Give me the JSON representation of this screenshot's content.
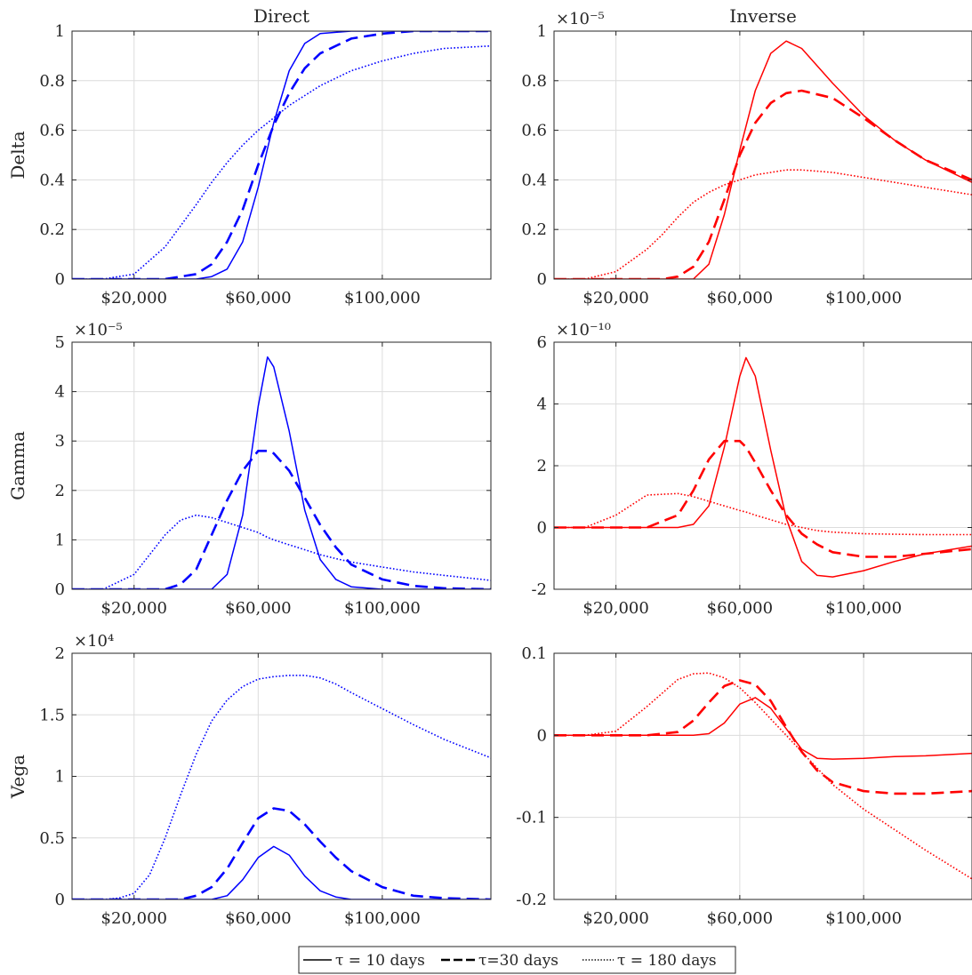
{
  "figure": {
    "column_titles": [
      "Direct",
      "Inverse"
    ],
    "row_labels": [
      "Delta",
      "Gamma",
      "Vega"
    ],
    "legend": [
      {
        "label": "τ = 10 days",
        "style": "solid"
      },
      {
        "label": "τ=30 days",
        "style": "dashed"
      },
      {
        "label": "τ = 180 days",
        "style": "dotted"
      }
    ],
    "colors": {
      "direct": "#0000ff",
      "inverse": "#ff0000",
      "grid": "#dcdcdc",
      "axis": "#262626"
    }
  },
  "chart_data": [
    {
      "type": "line",
      "panel": "delta-direct",
      "title": "Direct",
      "ylabel": "Delta",
      "xlim": [
        0,
        135000
      ],
      "ylim": [
        0,
        1
      ],
      "multiplier": "",
      "xticks": [
        20000,
        60000,
        100000
      ],
      "xtick_labels": [
        "$20,000",
        "$60,000",
        "$100,000"
      ],
      "yticks": [
        0,
        0.2,
        0.4,
        0.6,
        0.8,
        1
      ],
      "ytick_labels": [
        "0",
        "0.2",
        "0.4",
        "0.6",
        "0.8",
        "1"
      ],
      "x": [
        0,
        10000,
        20000,
        30000,
        40000,
        45000,
        50000,
        55000,
        60000,
        65000,
        70000,
        75000,
        80000,
        90000,
        100000,
        110000,
        120000,
        135000
      ],
      "series": [
        {
          "style": "solid",
          "values": [
            0,
            0,
            0,
            0,
            0,
            0.01,
            0.04,
            0.15,
            0.37,
            0.63,
            0.84,
            0.95,
            0.99,
            1,
            1,
            1,
            1,
            1
          ]
        },
        {
          "style": "dashed",
          "values": [
            0,
            0,
            0,
            0,
            0.02,
            0.06,
            0.15,
            0.28,
            0.46,
            0.62,
            0.75,
            0.85,
            0.91,
            0.97,
            0.99,
            1,
            1,
            1
          ]
        },
        {
          "style": "dotted",
          "values": [
            0,
            0,
            0.02,
            0.13,
            0.3,
            0.39,
            0.47,
            0.54,
            0.6,
            0.65,
            0.7,
            0.74,
            0.78,
            0.84,
            0.88,
            0.91,
            0.93,
            0.94
          ]
        }
      ]
    },
    {
      "type": "line",
      "panel": "delta-inverse",
      "title": "Inverse",
      "ylabel": "",
      "xlim": [
        0,
        135000
      ],
      "ylim": [
        0,
        1
      ],
      "multiplier": "×10⁻⁵",
      "xticks": [
        20000,
        60000,
        100000
      ],
      "xtick_labels": [
        "$20,000",
        "$60,000",
        "$100,000"
      ],
      "yticks": [
        0,
        0.2,
        0.4,
        0.6,
        0.8,
        1
      ],
      "ytick_labels": [
        "0",
        "0.2",
        "0.4",
        "0.6",
        "0.8",
        "1"
      ],
      "x": [
        0,
        10000,
        20000,
        30000,
        35000,
        40000,
        45000,
        50000,
        55000,
        60000,
        65000,
        70000,
        75000,
        80000,
        90000,
        100000,
        110000,
        120000,
        135000
      ],
      "series": [
        {
          "style": "solid",
          "values": [
            0,
            0,
            0,
            0,
            0,
            0,
            0,
            0.06,
            0.26,
            0.52,
            0.76,
            0.91,
            0.96,
            0.93,
            0.79,
            0.66,
            0.56,
            0.48,
            0.39
          ]
        },
        {
          "style": "dashed",
          "values": [
            0,
            0,
            0,
            0,
            0,
            0.01,
            0.05,
            0.15,
            0.32,
            0.5,
            0.63,
            0.71,
            0.75,
            0.76,
            0.73,
            0.65,
            0.56,
            0.48,
            0.4
          ]
        },
        {
          "style": "dotted",
          "values": [
            0,
            0,
            0.03,
            0.12,
            0.18,
            0.25,
            0.31,
            0.35,
            0.38,
            0.4,
            0.42,
            0.43,
            0.44,
            0.44,
            0.43,
            0.41,
            0.39,
            0.37,
            0.34
          ]
        }
      ]
    },
    {
      "type": "line",
      "panel": "gamma-direct",
      "title": "",
      "ylabel": "Gamma",
      "xlim": [
        0,
        135000
      ],
      "ylim": [
        0,
        5
      ],
      "multiplier": "×10⁻⁵",
      "xticks": [
        20000,
        60000,
        100000
      ],
      "xtick_labels": [
        "$20,000",
        "$60,000",
        "$100,000"
      ],
      "yticks": [
        0,
        1,
        2,
        3,
        4,
        5
      ],
      "ytick_labels": [
        "0",
        "1",
        "2",
        "3",
        "4",
        "5"
      ],
      "x": [
        0,
        10000,
        20000,
        30000,
        35000,
        40000,
        45000,
        50000,
        55000,
        60000,
        63000,
        65000,
        70000,
        75000,
        80000,
        85000,
        90000,
        100000,
        110000,
        120000,
        135000
      ],
      "series": [
        {
          "style": "solid",
          "values": [
            0,
            0,
            0,
            0,
            0,
            0,
            0,
            0.3,
            1.5,
            3.7,
            4.7,
            4.5,
            3.2,
            1.6,
            0.6,
            0.2,
            0.05,
            0,
            0,
            0,
            0
          ]
        },
        {
          "style": "dashed",
          "values": [
            0,
            0,
            0,
            0,
            0.1,
            0.4,
            1.1,
            1.8,
            2.4,
            2.8,
            2.8,
            2.75,
            2.4,
            1.85,
            1.3,
            0.85,
            0.5,
            0.2,
            0.07,
            0.02,
            0
          ]
        },
        {
          "style": "dotted",
          "values": [
            0,
            0,
            0.3,
            1.1,
            1.4,
            1.5,
            1.45,
            1.35,
            1.25,
            1.15,
            1.05,
            1.0,
            0.9,
            0.8,
            0.7,
            0.62,
            0.55,
            0.45,
            0.35,
            0.28,
            0.18
          ]
        }
      ]
    },
    {
      "type": "line",
      "panel": "gamma-inverse",
      "title": "",
      "ylabel": "",
      "xlim": [
        0,
        135000
      ],
      "ylim": [
        -2,
        6
      ],
      "multiplier": "×10⁻¹⁰",
      "xticks": [
        20000,
        60000,
        100000
      ],
      "xtick_labels": [
        "$20,000",
        "$60,000",
        "$100,000"
      ],
      "yticks": [
        -2,
        0,
        2,
        4,
        6
      ],
      "ytick_labels": [
        "-2",
        "0",
        "2",
        "4",
        "6"
      ],
      "x": [
        0,
        10000,
        20000,
        30000,
        40000,
        45000,
        50000,
        55000,
        60000,
        62000,
        65000,
        70000,
        75000,
        80000,
        85000,
        90000,
        100000,
        110000,
        120000,
        135000
      ],
      "series": [
        {
          "style": "solid",
          "values": [
            0,
            0,
            0,
            0,
            0,
            0.1,
            0.7,
            2.6,
            4.9,
            5.5,
            4.9,
            2.5,
            0.3,
            -1.1,
            -1.55,
            -1.6,
            -1.4,
            -1.1,
            -0.85,
            -0.6
          ]
        },
        {
          "style": "dashed",
          "values": [
            0,
            0,
            0,
            0,
            0.4,
            1.2,
            2.2,
            2.8,
            2.8,
            2.6,
            2.1,
            1.2,
            0.4,
            -0.2,
            -0.55,
            -0.8,
            -0.95,
            -0.95,
            -0.85,
            -0.7
          ]
        },
        {
          "style": "dotted",
          "values": [
            0,
            0,
            0.4,
            1.05,
            1.1,
            1.0,
            0.85,
            0.7,
            0.55,
            0.5,
            0.4,
            0.25,
            0.1,
            0,
            -0.1,
            -0.15,
            -0.2,
            -0.22,
            -0.23,
            -0.23
          ]
        }
      ]
    },
    {
      "type": "line",
      "panel": "vega-direct",
      "title": "",
      "ylabel": "Vega",
      "xlim": [
        0,
        135000
      ],
      "ylim": [
        0,
        2
      ],
      "multiplier": "×10⁴",
      "xticks": [
        20000,
        60000,
        100000
      ],
      "xtick_labels": [
        "$20,000",
        "$60,000",
        "$100,000"
      ],
      "yticks": [
        0,
        0.5,
        1,
        1.5,
        2
      ],
      "ytick_labels": [
        "0",
        "0.5",
        "1",
        "1.5",
        "2"
      ],
      "x": [
        0,
        10000,
        15000,
        20000,
        25000,
        30000,
        35000,
        40000,
        45000,
        50000,
        55000,
        60000,
        65000,
        70000,
        75000,
        80000,
        85000,
        90000,
        100000,
        110000,
        120000,
        135000
      ],
      "series": [
        {
          "style": "solid",
          "values": [
            0,
            0,
            0,
            0,
            0,
            0,
            0,
            0,
            0,
            0.03,
            0.16,
            0.34,
            0.43,
            0.36,
            0.19,
            0.07,
            0.02,
            0,
            0,
            0,
            0,
            0
          ]
        },
        {
          "style": "dashed",
          "values": [
            0,
            0,
            0,
            0,
            0,
            0,
            0,
            0.03,
            0.1,
            0.25,
            0.46,
            0.66,
            0.74,
            0.72,
            0.61,
            0.47,
            0.34,
            0.23,
            0.1,
            0.03,
            0.01,
            0
          ]
        },
        {
          "style": "dotted",
          "values": [
            0,
            0,
            0.01,
            0.05,
            0.2,
            0.5,
            0.85,
            1.18,
            1.45,
            1.62,
            1.73,
            1.79,
            1.81,
            1.82,
            1.82,
            1.8,
            1.75,
            1.68,
            1.55,
            1.42,
            1.3,
            1.15
          ]
        }
      ]
    },
    {
      "type": "line",
      "panel": "vega-inverse",
      "title": "",
      "ylabel": "",
      "xlim": [
        0,
        135000
      ],
      "ylim": [
        -0.2,
        0.1
      ],
      "multiplier": "",
      "xticks": [
        20000,
        60000,
        100000
      ],
      "xtick_labels": [
        "$20,000",
        "$60,000",
        "$100,000"
      ],
      "yticks": [
        -0.2,
        -0.1,
        0,
        0.1
      ],
      "ytick_labels": [
        "-0.2",
        "-0.1",
        "0",
        "0.1"
      ],
      "x": [
        0,
        10000,
        20000,
        30000,
        40000,
        45000,
        50000,
        55000,
        60000,
        65000,
        70000,
        75000,
        80000,
        85000,
        90000,
        100000,
        110000,
        120000,
        135000
      ],
      "series": [
        {
          "style": "solid",
          "values": [
            0,
            0,
            0,
            0,
            0,
            0,
            0.002,
            0.015,
            0.038,
            0.046,
            0.033,
            0.008,
            -0.017,
            -0.028,
            -0.029,
            -0.028,
            -0.026,
            -0.025,
            -0.022
          ]
        },
        {
          "style": "dashed",
          "values": [
            0,
            0,
            0,
            0,
            0.004,
            0.018,
            0.04,
            0.06,
            0.067,
            0.062,
            0.042,
            0.01,
            -0.02,
            -0.043,
            -0.057,
            -0.068,
            -0.071,
            -0.071,
            -0.068
          ]
        },
        {
          "style": "dotted",
          "values": [
            0,
            0,
            0.005,
            0.035,
            0.068,
            0.075,
            0.076,
            0.07,
            0.058,
            0.04,
            0.02,
            0.0,
            -0.02,
            -0.04,
            -0.06,
            -0.09,
            -0.115,
            -0.14,
            -0.175
          ]
        }
      ]
    }
  ]
}
